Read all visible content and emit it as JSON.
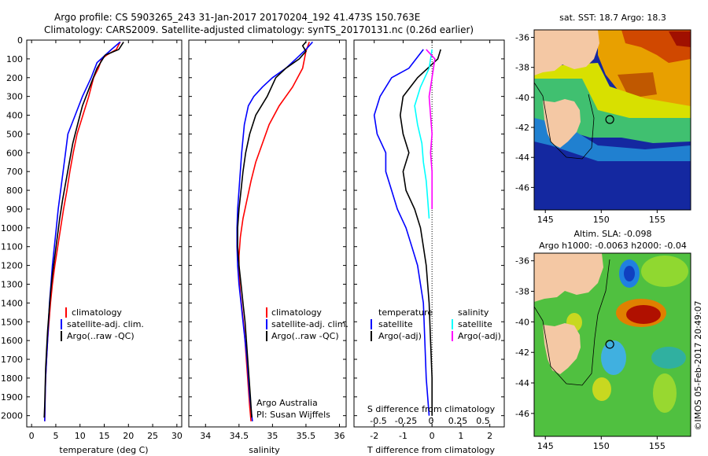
{
  "header": {
    "line1": "Argo profile: CS 5903265_243 31-Jan-2017 20170204_192 41.473S 150.763E",
    "line2": "Climatology: CARS2009. Satellite-adjusted climatology: synTS_20170131.nc (0.26d earlier)"
  },
  "side_label": "©IMOS 05-Feb-2017 20:49:07",
  "colors": {
    "climatology": "#ff0000",
    "satellite": "#0000ff",
    "argo": "#000000",
    "sal_satellite": "#00ffff",
    "sal_argo": "#ff00ff"
  },
  "chart_data": [
    {
      "id": "temperature",
      "type": "line",
      "xlabel": "temperature (deg C)",
      "ylabel": "",
      "xlim": [
        -1,
        31
      ],
      "ylim": [
        2060,
        0
      ],
      "xticks": [
        0,
        5,
        10,
        15,
        20,
        25,
        30
      ],
      "yticks": [
        0,
        100,
        200,
        300,
        400,
        500,
        600,
        700,
        800,
        900,
        1000,
        1100,
        1200,
        1300,
        1400,
        1500,
        1600,
        1700,
        1800,
        1900,
        2000
      ],
      "legend": [
        "climatology",
        "satellite-adj. clim.",
        "Argo(..raw -QC)"
      ],
      "series": [
        {
          "name": "climatology",
          "color": "#ff0000",
          "points": [
            [
              18.3,
              10
            ],
            [
              17.5,
              50
            ],
            [
              15.5,
              80
            ],
            [
              14.5,
              100
            ],
            [
              13.8,
              150
            ],
            [
              12.8,
              200
            ],
            [
              11.8,
              300
            ],
            [
              10.6,
              400
            ],
            [
              9.4,
              500
            ],
            [
              8.6,
              600
            ],
            [
              7.9,
              700
            ],
            [
              7.3,
              800
            ],
            [
              6.6,
              900
            ],
            [
              6.0,
              1000
            ],
            [
              5.4,
              1100
            ],
            [
              4.8,
              1200
            ],
            [
              4.3,
              1300
            ],
            [
              3.9,
              1400
            ],
            [
              3.6,
              1500
            ],
            [
              3.3,
              1600
            ],
            [
              3.1,
              1700
            ],
            [
              2.9,
              1800
            ],
            [
              2.8,
              1900
            ],
            [
              2.7,
              2030
            ]
          ]
        },
        {
          "name": "satellite-adj. clim.",
          "color": "#0000ff",
          "points": [
            [
              18.3,
              10
            ],
            [
              16.5,
              50
            ],
            [
              15.2,
              80
            ],
            [
              13.5,
              120
            ],
            [
              12.3,
              200
            ],
            [
              10.5,
              300
            ],
            [
              9.0,
              400
            ],
            [
              7.5,
              500
            ],
            [
              7.0,
              600
            ],
            [
              6.5,
              700
            ],
            [
              6.0,
              800
            ],
            [
              5.5,
              900
            ],
            [
              5.1,
              1000
            ],
            [
              4.7,
              1100
            ],
            [
              4.3,
              1200
            ],
            [
              4.0,
              1300
            ],
            [
              3.7,
              1400
            ],
            [
              3.5,
              1500
            ],
            [
              3.3,
              1600
            ],
            [
              3.1,
              1700
            ],
            [
              2.9,
              1800
            ],
            [
              2.8,
              1900
            ],
            [
              2.7,
              2030
            ]
          ]
        },
        {
          "name": "Argo(..raw -QC)",
          "color": "#000000",
          "points": [
            [
              19.0,
              10
            ],
            [
              18.0,
              50
            ],
            [
              15.2,
              80
            ],
            [
              13.5,
              150
            ],
            [
              12.0,
              250
            ],
            [
              10.5,
              350
            ],
            [
              9.5,
              450
            ],
            [
              8.5,
              550
            ],
            [
              7.8,
              650
            ],
            [
              7.1,
              750
            ],
            [
              6.4,
              850
            ],
            [
              5.8,
              950
            ],
            [
              5.3,
              1050
            ],
            [
              4.8,
              1150
            ],
            [
              4.3,
              1250
            ],
            [
              3.9,
              1350
            ],
            [
              3.6,
              1450
            ],
            [
              3.3,
              1550
            ],
            [
              3.1,
              1650
            ],
            [
              2.9,
              1750
            ],
            [
              2.8,
              1850
            ],
            [
              2.7,
              1950
            ],
            [
              2.6,
              2010
            ]
          ]
        }
      ]
    },
    {
      "id": "salinity",
      "type": "line",
      "xlabel": "salinity",
      "ylabel": "",
      "xlim": [
        33.75,
        36.1
      ],
      "ylim": [
        2060,
        0
      ],
      "xticks": [
        34,
        34.5,
        35,
        35.5,
        36
      ],
      "legend": [
        "climatology",
        "satellite-adj. clim.",
        "Argo(..raw -QC)"
      ],
      "annotation": [
        "Argo Australia",
        "PI: Susan Wijffels"
      ],
      "series": [
        {
          "name": "climatology",
          "color": "#ff0000",
          "points": [
            [
              35.55,
              10
            ],
            [
              35.5,
              60
            ],
            [
              35.45,
              150
            ],
            [
              35.3,
              250
            ],
            [
              35.1,
              350
            ],
            [
              34.95,
              450
            ],
            [
              34.85,
              550
            ],
            [
              34.75,
              650
            ],
            [
              34.68,
              750
            ],
            [
              34.62,
              850
            ],
            [
              34.56,
              950
            ],
            [
              34.52,
              1050
            ],
            [
              34.5,
              1150
            ],
            [
              34.5,
              1250
            ],
            [
              34.52,
              1350
            ],
            [
              34.55,
              1450
            ],
            [
              34.58,
              1550
            ],
            [
              34.6,
              1650
            ],
            [
              34.62,
              1750
            ],
            [
              34.64,
              1850
            ],
            [
              34.66,
              1950
            ],
            [
              34.68,
              2030
            ]
          ]
        },
        {
          "name": "satellite-adj. clim.",
          "color": "#0000ff",
          "points": [
            [
              35.6,
              10
            ],
            [
              35.5,
              50
            ],
            [
              35.35,
              100
            ],
            [
              35.2,
              150
            ],
            [
              35.0,
              200
            ],
            [
              34.85,
              250
            ],
            [
              34.72,
              300
            ],
            [
              34.64,
              350
            ],
            [
              34.58,
              450
            ],
            [
              34.54,
              600
            ],
            [
              34.52,
              700
            ],
            [
              34.5,
              800
            ],
            [
              34.48,
              900
            ],
            [
              34.47,
              1000
            ],
            [
              34.47,
              1100
            ],
            [
              34.48,
              1200
            ],
            [
              34.5,
              1300
            ],
            [
              34.53,
              1400
            ],
            [
              34.56,
              1500
            ],
            [
              34.59,
              1600
            ],
            [
              34.62,
              1700
            ],
            [
              34.64,
              1800
            ],
            [
              34.66,
              1900
            ],
            [
              34.7,
              2030
            ]
          ]
        },
        {
          "name": "Argo(..raw -QC)",
          "color": "#000000",
          "points": [
            [
              35.5,
              10
            ],
            [
              35.45,
              30
            ],
            [
              35.5,
              60
            ],
            [
              35.4,
              100
            ],
            [
              35.2,
              150
            ],
            [
              35.05,
              200
            ],
            [
              34.92,
              300
            ],
            [
              34.75,
              400
            ],
            [
              34.66,
              500
            ],
            [
              34.6,
              600
            ],
            [
              34.56,
              700
            ],
            [
              34.53,
              800
            ],
            [
              34.5,
              900
            ],
            [
              34.48,
              1000
            ],
            [
              34.48,
              1100
            ],
            [
              34.5,
              1200
            ],
            [
              34.53,
              1300
            ],
            [
              34.56,
              1400
            ],
            [
              34.59,
              1500
            ],
            [
              34.61,
              1600
            ],
            [
              34.63,
              1700
            ],
            [
              34.65,
              1800
            ],
            [
              34.67,
              1900
            ],
            [
              34.69,
              2010
            ]
          ]
        }
      ]
    },
    {
      "id": "difference",
      "type": "line",
      "xlabel": "T difference from climatology",
      "top_label": "S difference from climatology",
      "xlim": [
        -2.7,
        2.5
      ],
      "ylim": [
        2060,
        0
      ],
      "xticks": [
        -2,
        -1,
        0,
        1,
        2
      ],
      "sticks": [
        "-0.5",
        "-0.25",
        "0",
        "0.25",
        "0.5"
      ],
      "legend_temperature": [
        "temperature",
        "satellite",
        "Argo(-adj)"
      ],
      "legend_salinity": [
        "salinity",
        "satellite",
        "Argo(-adj)"
      ],
      "series": [
        {
          "name": "satellite",
          "group": "temperature",
          "color": "#0000ff",
          "points": [
            [
              -0.3,
              50
            ],
            [
              -0.8,
              150
            ],
            [
              -1.4,
              200
            ],
            [
              -1.8,
              300
            ],
            [
              -2.0,
              400
            ],
            [
              -1.9,
              500
            ],
            [
              -1.6,
              600
            ],
            [
              -1.6,
              700
            ],
            [
              -1.4,
              800
            ],
            [
              -1.2,
              900
            ],
            [
              -0.9,
              1000
            ],
            [
              -0.7,
              1100
            ],
            [
              -0.5,
              1200
            ],
            [
              -0.4,
              1300
            ],
            [
              -0.3,
              1400
            ],
            [
              -0.25,
              1600
            ],
            [
              -0.2,
              1800
            ],
            [
              -0.1,
              2000
            ]
          ]
        },
        {
          "name": "Argo(-adj)",
          "group": "temperature",
          "color": "#000000",
          "points": [
            [
              0.3,
              50
            ],
            [
              0.2,
              100
            ],
            [
              -0.5,
              200
            ],
            [
              -1.0,
              300
            ],
            [
              -1.1,
              400
            ],
            [
              -1.0,
              500
            ],
            [
              -0.8,
              600
            ],
            [
              -1.0,
              700
            ],
            [
              -0.9,
              800
            ],
            [
              -0.6,
              900
            ],
            [
              -0.4,
              1000
            ],
            [
              -0.3,
              1100
            ],
            [
              -0.2,
              1200
            ],
            [
              -0.1,
              1400
            ],
            [
              -0.05,
              1600
            ],
            [
              0,
              1800
            ],
            [
              0,
              2000
            ]
          ]
        },
        {
          "name": "satellite",
          "group": "salinity",
          "color": "#00ffff",
          "points": [
            [
              0,
              50
            ],
            [
              -0.1,
              150
            ],
            [
              -0.4,
              250
            ],
            [
              -0.6,
              350
            ],
            [
              -0.5,
              450
            ],
            [
              -0.35,
              550
            ],
            [
              -0.3,
              650
            ],
            [
              -0.2,
              750
            ],
            [
              -0.15,
              850
            ],
            [
              -0.1,
              950
            ]
          ]
        },
        {
          "name": "Argo(-adj)",
          "group": "salinity",
          "color": "#ff00ff",
          "points": [
            [
              -0.2,
              50
            ],
            [
              0.1,
              100
            ],
            [
              0.0,
              200
            ],
            [
              -0.1,
              300
            ],
            [
              -0.05,
              400
            ],
            [
              0.0,
              500
            ],
            [
              -0.05,
              600
            ],
            [
              0.0,
              700
            ],
            [
              0,
              800
            ],
            [
              0,
              900
            ]
          ]
        }
      ]
    },
    {
      "id": "sst_map",
      "type": "heatmap",
      "title": "sat. SST: 18.7 Argo: 18.3",
      "xlim": [
        144,
        158
      ],
      "ylim": [
        -47.5,
        -35.5
      ],
      "xticks": [
        145,
        150,
        155
      ],
      "yticks": [
        -36,
        -38,
        -40,
        -42,
        -44,
        -46
      ],
      "marker": {
        "lon": 150.763,
        "lat": -41.473
      }
    },
    {
      "id": "sla_map",
      "type": "heatmap",
      "title": "Altim. SLA: -0.098",
      "subtitle": "Argo h1000: -0.0063 h2000: -0.04",
      "xlim": [
        144,
        158
      ],
      "ylim": [
        -47.5,
        -35.5
      ],
      "xticks": [
        145,
        150,
        155
      ],
      "yticks": [
        -36,
        -38,
        -40,
        -42,
        -44,
        -46
      ],
      "marker": {
        "lon": 150.763,
        "lat": -41.473
      }
    }
  ]
}
